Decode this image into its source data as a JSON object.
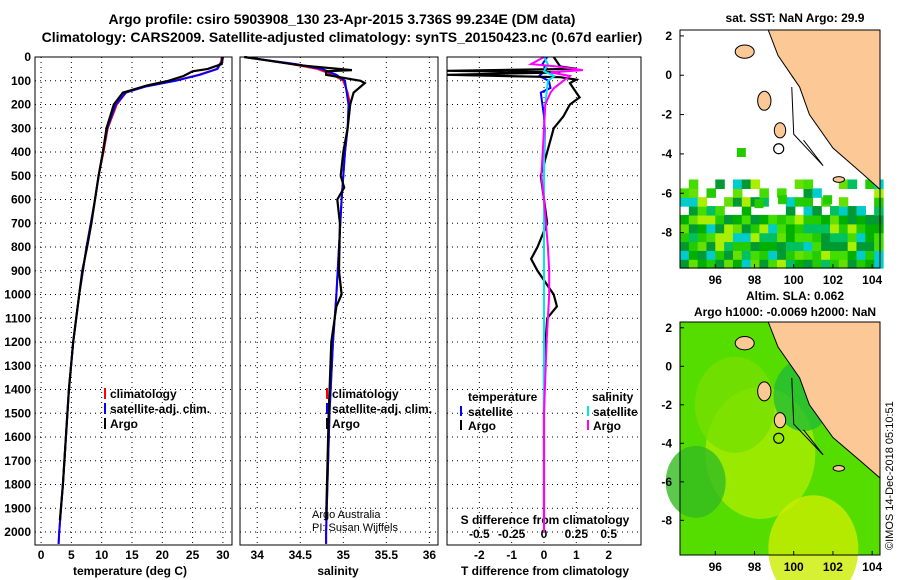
{
  "title_line1": "Argo profile: csiro 5903908_130 23-Apr-2015 3.736S 99.234E (DM data)",
  "title_line2": "Climatology: CARS2009. Satellite-adjusted climatology: synTS_20150423.nc (0.67d earlier)",
  "credit": "Argo Australia",
  "pi": "PI: Susan Wijffels",
  "stamp": "©IMOS 14-Dec-2018 05:10:51",
  "colors": {
    "climatology": "#ff0000",
    "satellite": "#0000ff",
    "argo": "#000000",
    "sal_sat": "#00e5ee",
    "sal_argo": "#ff00ff",
    "land": "#fbc896"
  },
  "chart_data": [
    {
      "type": "line",
      "id": "temp",
      "xlabel": "temperature (deg C)",
      "ylabel": "depth",
      "xlim": [
        -1,
        31.5
      ],
      "ylim": [
        2070,
        0
      ],
      "xticks": [
        0,
        5,
        10,
        15,
        20,
        25,
        30
      ],
      "yticks": [
        0,
        100,
        200,
        300,
        400,
        500,
        600,
        700,
        800,
        900,
        1000,
        1100,
        1200,
        1300,
        1400,
        1500,
        1600,
        1700,
        1800,
        1900,
        2000
      ],
      "legend": [
        "climatology",
        "satellite-adj. clim.",
        "Argo"
      ],
      "series": [
        {
          "name": "climatology",
          "color": "#ff0000",
          "depth": [
            0,
            20,
            50,
            75,
            100,
            125,
            150,
            200,
            300,
            400,
            500,
            600,
            700,
            800,
            900,
            1000,
            1200,
            1400,
            1600,
            1800,
            2000,
            2050
          ],
          "values": [
            29.8,
            29.7,
            29.0,
            26.0,
            22.0,
            17.0,
            14.0,
            12.5,
            11.0,
            10.3,
            9.5,
            8.9,
            8.2,
            7.5,
            6.9,
            6.3,
            5.3,
            4.6,
            4.1,
            3.6,
            3.0,
            2.9
          ]
        },
        {
          "name": "satellite-adj. clim.",
          "color": "#0000ff",
          "depth": [
            0,
            20,
            50,
            75,
            100,
            125,
            150,
            200,
            300,
            400,
            500,
            600,
            700,
            800,
            900,
            1000,
            1200,
            1400,
            1600,
            1800,
            2000,
            2050
          ],
          "values": [
            29.9,
            29.8,
            29.1,
            26.2,
            22.2,
            17.2,
            14.0,
            12.3,
            10.9,
            10.2,
            9.5,
            8.9,
            8.2,
            7.5,
            6.9,
            6.3,
            5.3,
            4.6,
            4.1,
            3.6,
            3.0,
            2.9
          ]
        },
        {
          "name": "Argo",
          "color": "#000000",
          "depth": [
            0,
            30,
            50,
            60,
            80,
            100,
            120,
            150,
            200,
            300,
            400,
            500,
            600,
            700,
            800,
            900,
            1000,
            1200,
            1400,
            1600,
            1800,
            1950
          ],
          "values": [
            30.0,
            29.8,
            27.5,
            25.0,
            23.5,
            21.0,
            17.5,
            13.5,
            12.0,
            10.8,
            10.2,
            9.5,
            8.9,
            8.3,
            7.6,
            6.8,
            6.3,
            5.3,
            4.6,
            4.1,
            3.6,
            3.1
          ]
        }
      ]
    },
    {
      "type": "line",
      "id": "sal",
      "xlabel": "salinity",
      "ylabel": "depth",
      "xlim": [
        33.8,
        36.1
      ],
      "ylim": [
        2070,
        0
      ],
      "xticks": [
        34,
        34.5,
        35,
        35.5,
        36
      ],
      "legend": [
        "climatology",
        "satellite-adj. clim.",
        "Argo"
      ],
      "series": [
        {
          "name": "climatology",
          "color": "#ff0000",
          "depth": [
            0,
            30,
            50,
            75,
            100,
            150,
            200,
            300,
            400,
            500,
            600,
            800,
            1000,
            1200,
            1500,
            2000,
            2050
          ],
          "values": [
            33.85,
            34.4,
            34.7,
            34.88,
            35.0,
            35.05,
            35.08,
            35.05,
            35.02,
            35.0,
            34.98,
            34.95,
            34.92,
            34.88,
            34.84,
            34.8,
            34.8
          ]
        },
        {
          "name": "satellite-adj. clim.",
          "color": "#0000ff",
          "depth": [
            0,
            30,
            50,
            75,
            100,
            150,
            200,
            300,
            400,
            500,
            600,
            800,
            1000,
            1200,
            1500,
            2000,
            2050
          ],
          "values": [
            33.85,
            34.45,
            34.75,
            34.92,
            35.02,
            35.04,
            35.06,
            35.05,
            35.02,
            35.0,
            34.98,
            34.95,
            34.92,
            34.88,
            34.84,
            34.8,
            34.8
          ]
        },
        {
          "name": "Argo",
          "color": "#000000",
          "depth": [
            0,
            35,
            55,
            60,
            75,
            100,
            110,
            150,
            200,
            300,
            400,
            500,
            550,
            600,
            700,
            900,
            1000,
            1050,
            1100,
            1200,
            1500,
            1950
          ],
          "values": [
            33.85,
            34.5,
            35.1,
            34.8,
            34.8,
            35.2,
            35.25,
            35.12,
            35.08,
            35.05,
            35.0,
            34.97,
            35.01,
            34.93,
            34.96,
            34.95,
            34.98,
            34.92,
            34.9,
            34.86,
            34.83,
            34.8
          ]
        }
      ]
    },
    {
      "type": "line",
      "id": "diff",
      "xlabel": "T difference from climatology",
      "x2label": "S difference from climatology",
      "xlim": [
        -3,
        3
      ],
      "x2lim": [
        -0.75,
        0.75
      ],
      "ylim": [
        2070,
        0
      ],
      "xticks": [
        -2,
        -1,
        0,
        1,
        2
      ],
      "x2ticks": [
        "-0.5",
        "-0.25",
        "0",
        "0.25",
        "0.5"
      ],
      "legend_t_title": "temperature",
      "legend_s_title": "salinity",
      "legend_t": [
        "satellite",
        "Argo"
      ],
      "legend_s": [
        "satellite",
        "Argo"
      ],
      "series": [
        {
          "name": "T satellite",
          "axis": "T",
          "color": "#0000ff",
          "depth": [
            0,
            30,
            50,
            80,
            100,
            130,
            150,
            200,
            250,
            300,
            500,
            1000,
            1500,
            1800,
            2000
          ],
          "values": [
            0.1,
            -0.05,
            0.1,
            -0.15,
            0.15,
            0.2,
            -0.1,
            -0.05,
            0.0,
            0.02,
            0.0,
            0.0,
            0.0,
            0.0,
            0.0
          ]
        },
        {
          "name": "T Argo",
          "axis": "T",
          "color": "#000000",
          "depth": [
            0,
            40,
            50,
            58,
            65,
            75,
            85,
            95,
            110,
            130,
            150,
            170,
            200,
            250,
            300,
            400,
            500,
            600,
            700,
            800,
            850,
            900,
            1000,
            1050,
            1100,
            1200,
            1300,
            1950
          ],
          "values": [
            0.3,
            0.5,
            1.0,
            -3.0,
            0.5,
            -3.0,
            0.5,
            1.0,
            0.8,
            0.9,
            1.0,
            1.1,
            0.8,
            0.6,
            0.3,
            0.1,
            -0.1,
            0.0,
            0.1,
            -0.2,
            -0.4,
            -0.2,
            0.3,
            0.4,
            0.1,
            0.05,
            0.0,
            0.0
          ]
        },
        {
          "name": "S satellite",
          "axis": "S",
          "color": "#00e5ee",
          "depth": [
            0,
            30,
            60,
            80,
            100,
            150,
            200,
            300,
            500,
            1000,
            1500,
            2000
          ],
          "values": [
            0.0,
            0.03,
            0.0,
            0.08,
            0.03,
            0.02,
            0.01,
            0.0,
            0.0,
            0.0,
            0.0,
            0.0
          ]
        },
        {
          "name": "S Argo",
          "axis": "S",
          "color": "#ff00ff",
          "depth": [
            0,
            30,
            40,
            55,
            65,
            80,
            100,
            130,
            150,
            200,
            300,
            500,
            600,
            800,
            900,
            1000,
            1100,
            1200,
            1500,
            2000
          ],
          "values": [
            0.0,
            -0.1,
            0.1,
            0.3,
            0.05,
            0.2,
            0.15,
            0.08,
            0.05,
            0.01,
            0.0,
            -0.02,
            0.0,
            0.03,
            0.04,
            0.04,
            0.03,
            0.02,
            0.0,
            0.0
          ]
        }
      ]
    },
    {
      "type": "heatmap",
      "id": "sst_map",
      "title": "sat. SST: NaN Argo: 29.9",
      "xlim": [
        94.2,
        104.4
      ],
      "ylim": [
        -9.8,
        2.3
      ],
      "xticks": [
        96,
        98,
        100,
        102,
        104
      ],
      "yticks": [
        2,
        0,
        -2,
        -4,
        -6,
        -8
      ],
      "argo_position": [
        99.234,
        -3.736
      ]
    },
    {
      "type": "heatmap",
      "id": "sla_map",
      "title": "Altim. SLA: 0.062",
      "subtitle": "Argo h1000: -0.0069 h2000: NaN",
      "xlim": [
        94.2,
        104.4
      ],
      "ylim": [
        -9.8,
        2.3
      ],
      "xticks": [
        96,
        98,
        100,
        102,
        104
      ],
      "yticks": [
        2,
        0,
        -2,
        -4,
        -6,
        -8
      ],
      "argo_position": [
        99.234,
        -3.736
      ]
    }
  ]
}
